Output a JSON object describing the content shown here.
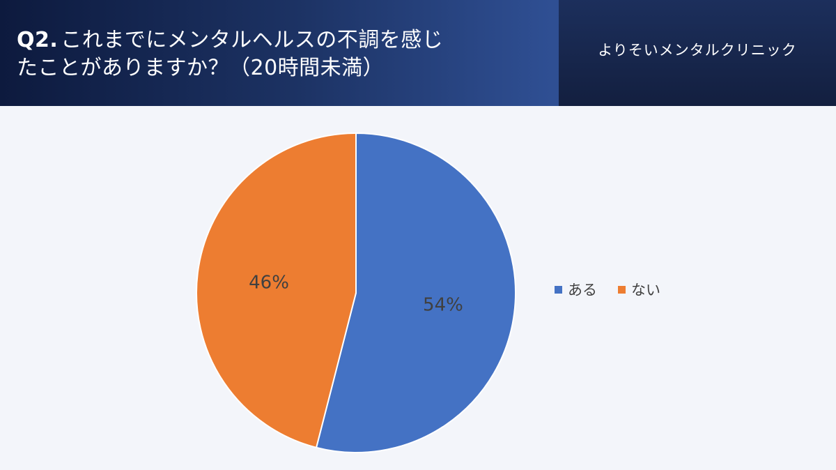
{
  "header": {
    "question_number": "Q2.",
    "question_line1": "これまでにメンタルヘルスの不調を感じ",
    "question_line2": "たことがありますか？（20時間未満）",
    "clinic_name": "よりそいメンタルクリニック"
  },
  "chart_data": {
    "type": "pie",
    "slices": [
      {
        "label": "ある",
        "value": 54,
        "data_label": "54%",
        "color": "#4472c4"
      },
      {
        "label": "ない",
        "value": 46,
        "data_label": "46%",
        "color": "#ed7d31"
      }
    ],
    "start_angle": "12 o'clock",
    "direction": "clockwise",
    "legend_position": "right"
  }
}
